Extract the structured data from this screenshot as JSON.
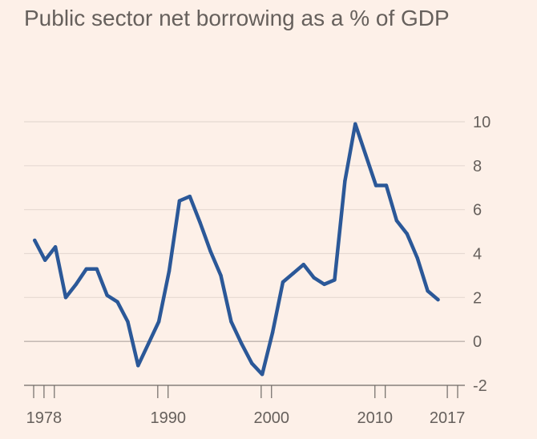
{
  "chart_data": {
    "type": "line",
    "title": "Public sector net borrowing as a % of GDP",
    "xlabel": "",
    "ylabel": "",
    "xlim": [
      1977,
      2018
    ],
    "ylim": [
      -2,
      10
    ],
    "y_ticks": [
      -2,
      0,
      2,
      4,
      6,
      8,
      10
    ],
    "x_tick_labels": [
      {
        "year": 1978,
        "label": "1978"
      },
      {
        "year": 1990,
        "label": "1990"
      },
      {
        "year": 2000,
        "label": "2000"
      },
      {
        "year": 2010,
        "label": "2010"
      },
      {
        "year": 2017,
        "label": "2017"
      }
    ],
    "x_minor_ticks": [
      1977,
      1979,
      1989,
      1999,
      2011,
      2018
    ],
    "grid": true,
    "y_axis_side": "right",
    "series": [
      {
        "name": "Public sector net borrowing",
        "color": "#2b5898",
        "points": [
          [
            1977.1,
            4.6
          ],
          [
            1978.1,
            3.7
          ],
          [
            1979.1,
            4.3
          ],
          [
            1980.1,
            2.0
          ],
          [
            1981.1,
            2.6
          ],
          [
            1982.1,
            3.3
          ],
          [
            1983.1,
            3.3
          ],
          [
            1984.1,
            2.1
          ],
          [
            1985.1,
            1.8
          ],
          [
            1986.1,
            0.9
          ],
          [
            1987.1,
            -1.1
          ],
          [
            1988.1,
            -0.1
          ],
          [
            1989.1,
            0.9
          ],
          [
            1990.1,
            3.2
          ],
          [
            1991.1,
            6.4
          ],
          [
            1992.1,
            6.6
          ],
          [
            1993.1,
            5.4
          ],
          [
            1994.1,
            4.1
          ],
          [
            1995.1,
            3.0
          ],
          [
            1996.1,
            0.9
          ],
          [
            1997.1,
            -0.1
          ],
          [
            1998.1,
            -1.0
          ],
          [
            1999.1,
            -1.5
          ],
          [
            2000.1,
            0.4
          ],
          [
            2001.1,
            2.7
          ],
          [
            2002.1,
            3.1
          ],
          [
            2003.1,
            3.5
          ],
          [
            2004.1,
            2.9
          ],
          [
            2005.1,
            2.6
          ],
          [
            2006.1,
            2.8
          ],
          [
            2007.1,
            7.3
          ],
          [
            2008.1,
            9.9
          ],
          [
            2009.1,
            8.5
          ],
          [
            2010.1,
            7.1
          ],
          [
            2011.1,
            7.1
          ],
          [
            2012.1,
            5.5
          ],
          [
            2013.1,
            4.9
          ],
          [
            2014.1,
            3.8
          ],
          [
            2015.1,
            2.3
          ],
          [
            2016.1,
            1.9
          ]
        ]
      }
    ]
  }
}
